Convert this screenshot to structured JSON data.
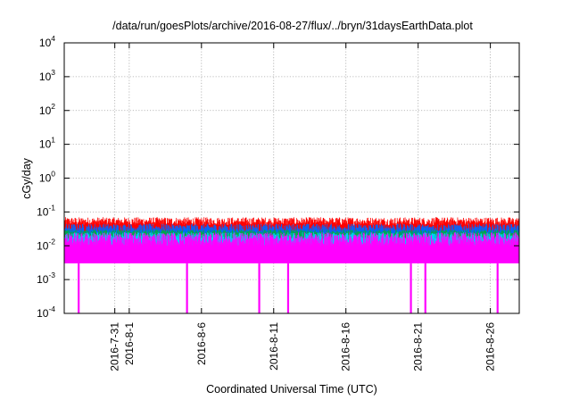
{
  "chart_data": {
    "type": "line",
    "title": "/data/run/goesPlots/archive/2016-08-27/flux/../bryn/31daysEarthData.plot",
    "xlabel": "Coordinated Universal Time (UTC)",
    "ylabel": "cGy/day",
    "yscale": "log",
    "ylim": [
      0.0001,
      10000
    ],
    "xlim": [
      "2016-07-27T12:00",
      "2016-08-28T00:00"
    ],
    "grid": true,
    "y_ticks": [
      {
        "base": "10",
        "exp": "-4",
        "value": 0.0001
      },
      {
        "base": "10",
        "exp": "-3",
        "value": 0.001
      },
      {
        "base": "10",
        "exp": "-2",
        "value": 0.01
      },
      {
        "base": "10",
        "exp": "-1",
        "value": 0.1
      },
      {
        "base": "10",
        "exp": "0",
        "value": 1
      },
      {
        "base": "10",
        "exp": "1",
        "value": 10
      },
      {
        "base": "10",
        "exp": "2",
        "value": 100
      },
      {
        "base": "10",
        "exp": "3",
        "value": 1000
      },
      {
        "base": "10",
        "exp": "4",
        "value": 10000
      }
    ],
    "x_ticks": [
      {
        "date": "2016-07-31",
        "label": "2016-7-31"
      },
      {
        "date": "2016-08-01",
        "label": "2016-8-1"
      },
      {
        "date": "2016-08-06",
        "label": "2016-8-6"
      },
      {
        "date": "2016-08-11",
        "label": "2016-8-11"
      },
      {
        "date": "2016-08-16",
        "label": "2016-8-16"
      },
      {
        "date": "2016-08-21",
        "label": "2016-8-21"
      },
      {
        "date": "2016-08-26",
        "label": "2016-8-26"
      }
    ],
    "series": [
      {
        "color": "#ff0000",
        "peak_max": 0.07,
        "peak_min": 0.04,
        "low": 0.02
      },
      {
        "color": "#0066ff",
        "peak_max": 0.045,
        "peak_min": 0.025,
        "low": 0.015
      },
      {
        "color": "#00aa44",
        "peak_max": 0.03,
        "peak_min": 0.02,
        "low": 0.012
      },
      {
        "color": "#00ccff",
        "peak_max": 0.025,
        "peak_min": 0.015,
        "low": 0.01
      },
      {
        "color": "#ff00ff",
        "peak_max": 0.025,
        "peak_min": 0.01,
        "low": 0.003
      }
    ],
    "dropouts": [
      {
        "date": "2016-07-28T12:00",
        "value": 0.0001
      },
      {
        "date": "2016-08-05T00:00",
        "value": 0.0001
      },
      {
        "date": "2016-08-10T00:00",
        "value": 0.0001
      },
      {
        "date": "2016-08-12T00:00",
        "value": 0.0001
      },
      {
        "date": "2016-08-20T12:00",
        "value": 0.0001
      },
      {
        "date": "2016-08-21T12:00",
        "value": 0.0001
      },
      {
        "date": "2016-08-26T12:00",
        "value": 0.0001
      }
    ]
  }
}
